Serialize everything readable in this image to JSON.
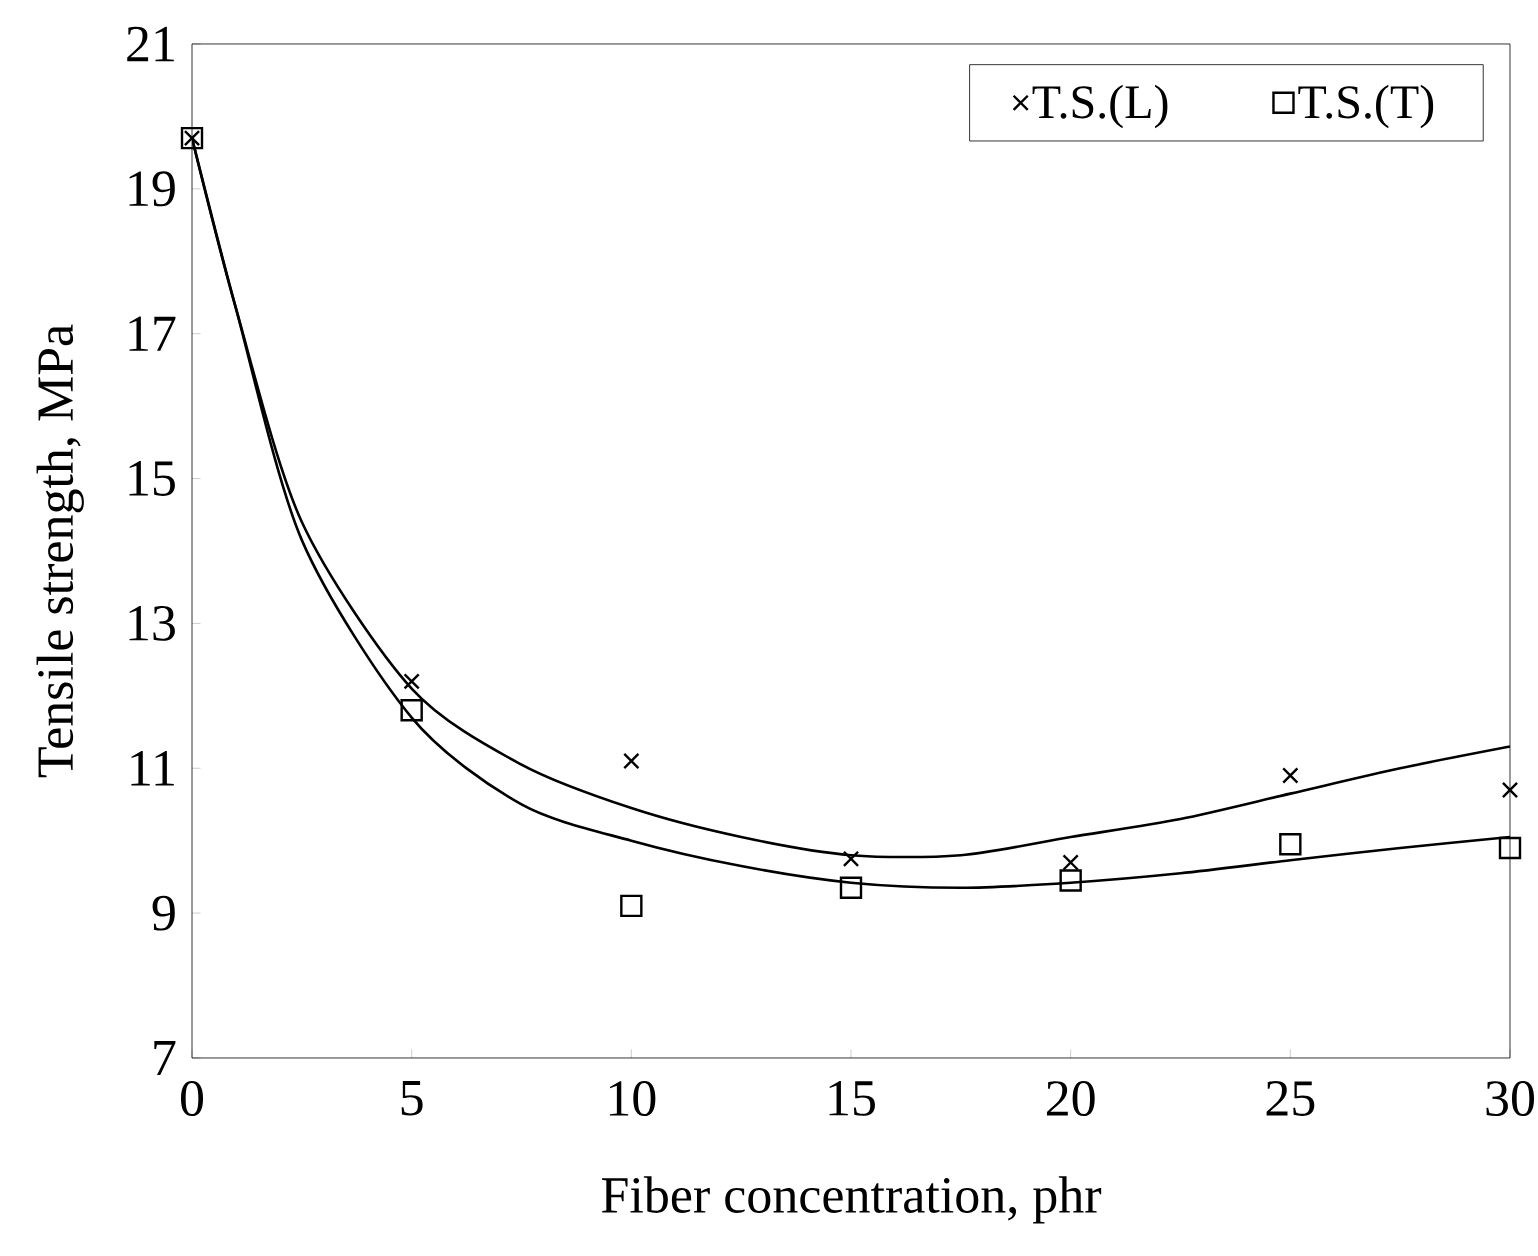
{
  "chart_data": {
    "type": "scatter",
    "xlabel": "Fiber concentration, phr",
    "ylabel": "Tensile strength, MPa",
    "xlim": [
      0,
      30
    ],
    "xticks": [
      0,
      5,
      10,
      15,
      20,
      25,
      30
    ],
    "ylim": [
      7,
      21
    ],
    "yticks": [
      7,
      9,
      11,
      13,
      15,
      17,
      19,
      21
    ],
    "grid": false,
    "legend": "top right",
    "series": [
      {
        "name": "T.S.(L)",
        "marker": "cross",
        "color": "#000000",
        "x": [
          0,
          5,
          10,
          15,
          20,
          25,
          30
        ],
        "values": [
          19.7,
          12.2,
          11.1,
          9.75,
          9.7,
          10.9,
          10.7
        ]
      },
      {
        "name": "T.S.(T)",
        "marker": "square",
        "color": "#000000",
        "x": [
          0,
          5,
          10,
          15,
          20,
          25,
          30
        ],
        "values": [
          19.7,
          11.8,
          9.1,
          9.35,
          9.45,
          9.95,
          9.9
        ]
      },
      {
        "type": "line",
        "marker": "none",
        "color": "#000000",
        "x": [
          0,
          1,
          2.5,
          5,
          7.5,
          10,
          12.5,
          15,
          17.5,
          20,
          22.5,
          25,
          27.5,
          30
        ],
        "values": [
          19.7,
          17.35,
          14.4,
          12.1,
          11.05,
          10.45,
          10.05,
          9.8,
          9.8,
          10.05,
          10.3,
          10.65,
          11.0,
          11.3
        ]
      },
      {
        "type": "line",
        "marker": "none",
        "color": "#000000",
        "x": [
          0,
          1,
          2.5,
          5,
          7.5,
          10,
          12.5,
          15,
          17.5,
          20,
          22.5,
          25,
          27.5,
          30
        ],
        "values": [
          19.7,
          17.35,
          14.15,
          11.7,
          10.5,
          10.0,
          9.65,
          9.42,
          9.35,
          9.42,
          9.55,
          9.73,
          9.9,
          10.05
        ]
      }
    ]
  }
}
